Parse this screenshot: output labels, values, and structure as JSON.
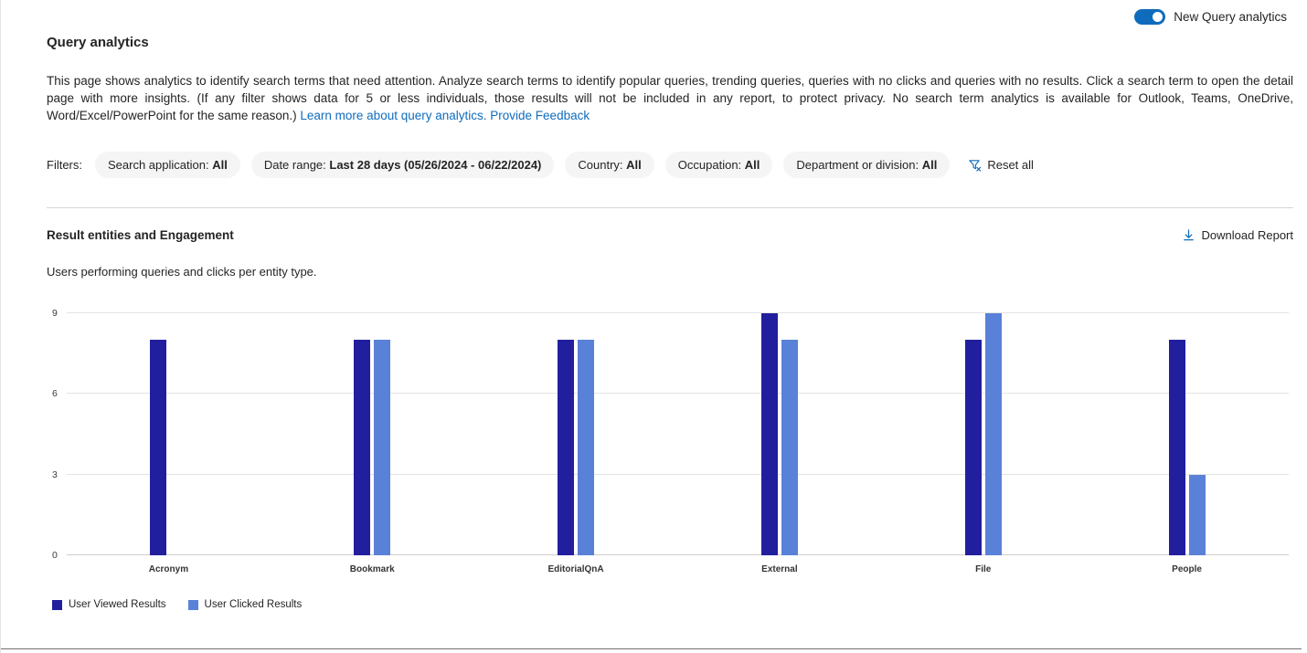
{
  "header": {
    "toggle_label": "New Query analytics",
    "title": "Query analytics"
  },
  "intro": {
    "text": "This page shows analytics to identify search terms that need attention. Analyze search terms to identify popular queries, trending queries, queries with no clicks and queries with no results. Click a search term to open the detail page with more insights. (If any filter shows data for 5 or less individuals, those results will not be included in any report, to protect privacy. No search term analytics is available for Outlook, Teams, OneDrive, Word/Excel/PowerPoint for the same reason.)",
    "link_learn_more": "Learn more about query analytics.",
    "link_feedback": "Provide Feedback"
  },
  "filters": {
    "label": "Filters:",
    "pills": [
      {
        "name": "Search application:",
        "value": "All"
      },
      {
        "name": "Date range:",
        "value": "Last 28 days (05/26/2024 - 06/22/2024)"
      },
      {
        "name": "Country:",
        "value": "All"
      },
      {
        "name": "Occupation:",
        "value": "All"
      },
      {
        "name": "Department or division:",
        "value": "All"
      }
    ],
    "reset_label": "Reset all"
  },
  "section": {
    "title": "Result entities and Engagement",
    "download_label": "Download Report",
    "subtitle": "Users performing queries and clicks per entity type."
  },
  "colors": {
    "accent": "#0f6cbd",
    "viewed_bar": "#221f9e",
    "clicked_bar": "#5a81d8"
  },
  "chart_data": {
    "type": "bar",
    "title": "Result entities and Engagement",
    "subtitle": "Users performing queries and clicks per entity type.",
    "categories": [
      "Acronym",
      "Bookmark",
      "EditorialQnA",
      "External",
      "File",
      "People"
    ],
    "series": [
      {
        "name": "User Viewed Results",
        "color": "#221f9e",
        "values": [
          8,
          8,
          8,
          9,
          8,
          8
        ]
      },
      {
        "name": "User Clicked Results",
        "color": "#5a81d8",
        "values": [
          0,
          8,
          8,
          8,
          9,
          3
        ]
      }
    ],
    "ylim": [
      0,
      9
    ],
    "yticks": [
      0,
      3,
      6,
      9
    ],
    "grid": true,
    "legend_position": "bottom"
  }
}
